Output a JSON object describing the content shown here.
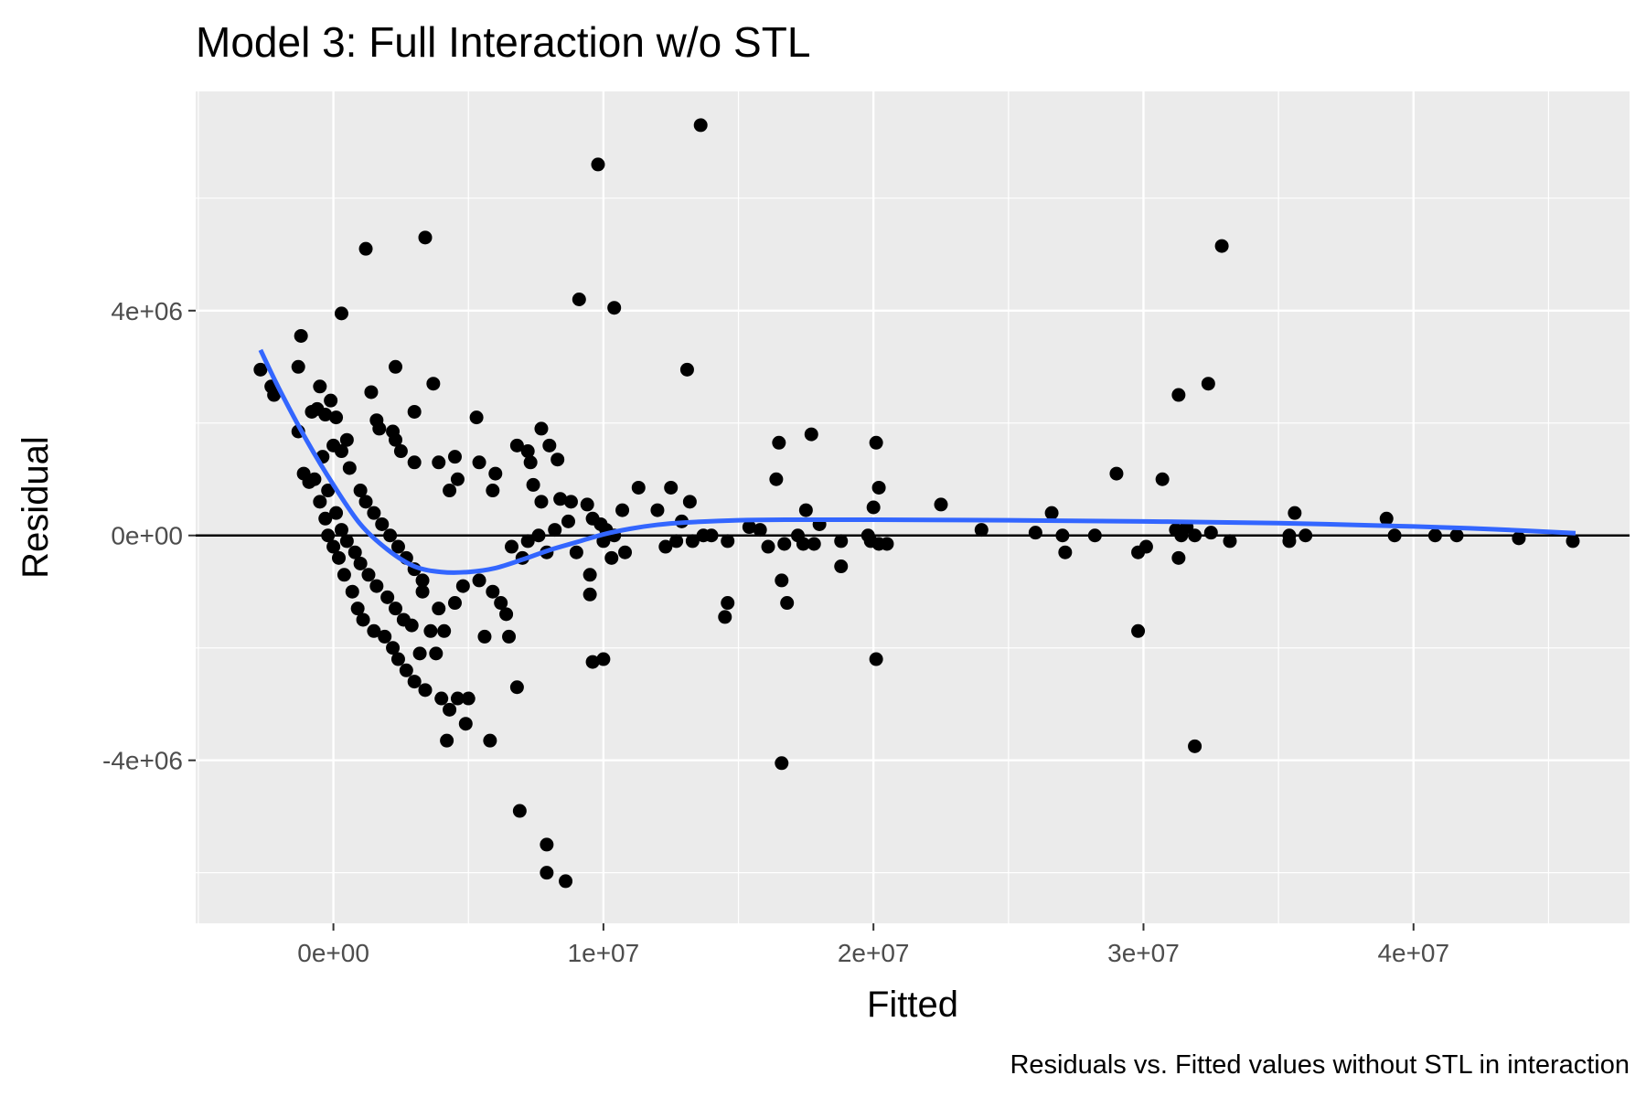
{
  "chart_data": {
    "type": "scatter",
    "title": "Model 3: Full Interaction w/o STL",
    "caption": "Residuals vs. Fitted values without STL in interaction",
    "xlabel": "Fitted",
    "ylabel": "Residual",
    "xlim": [
      -5100000,
      48000000
    ],
    "ylim": [
      -6900000,
      7900000
    ],
    "x_ticks": [
      0,
      10000000,
      20000000,
      30000000,
      40000000
    ],
    "x_tick_labels": [
      "0e+00",
      "1e+07",
      "2e+07",
      "3e+07",
      "4e+07"
    ],
    "y_ticks": [
      -4000000,
      0,
      4000000
    ],
    "y_tick_labels": [
      "-4e+06",
      "0e+00",
      "4e+06"
    ],
    "grid": true,
    "reference_line_y": 0,
    "series": [
      {
        "type": "points",
        "color": "#000000",
        "points": [
          [
            -2700000,
            2950000
          ],
          [
            -2200000,
            2500000
          ],
          [
            -2300000,
            2650000
          ],
          [
            -1300000,
            3000000
          ],
          [
            -1200000,
            3550000
          ],
          [
            -1300000,
            1850000
          ],
          [
            -1100000,
            1100000
          ],
          [
            -800000,
            2200000
          ],
          [
            -600000,
            2250000
          ],
          [
            -500000,
            2650000
          ],
          [
            -300000,
            2150000
          ],
          [
            -100000,
            2400000
          ],
          [
            100000,
            2100000
          ],
          [
            300000,
            3950000
          ],
          [
            -900000,
            950000
          ],
          [
            -700000,
            1000000
          ],
          [
            -400000,
            1400000
          ],
          [
            0,
            1600000
          ],
          [
            300000,
            1500000
          ],
          [
            500000,
            1700000
          ],
          [
            600000,
            1200000
          ],
          [
            -500000,
            600000
          ],
          [
            -300000,
            300000
          ],
          [
            -200000,
            0
          ],
          [
            0,
            -200000
          ],
          [
            200000,
            -400000
          ],
          [
            400000,
            -700000
          ],
          [
            700000,
            -1000000
          ],
          [
            900000,
            -1300000
          ],
          [
            1100000,
            -1500000
          ],
          [
            1500000,
            -1700000
          ],
          [
            1900000,
            -1800000
          ],
          [
            2200000,
            -2000000
          ],
          [
            2400000,
            -2200000
          ],
          [
            2700000,
            -2400000
          ],
          [
            3000000,
            -2600000
          ],
          [
            3400000,
            -2750000
          ],
          [
            3200000,
            -2100000
          ],
          [
            3800000,
            -2100000
          ],
          [
            3600000,
            -1700000
          ],
          [
            4100000,
            -1700000
          ],
          [
            4000000,
            -2900000
          ],
          [
            4300000,
            -3100000
          ],
          [
            4600000,
            -2900000
          ],
          [
            5000000,
            -2900000
          ],
          [
            4900000,
            -3350000
          ],
          [
            4200000,
            -3650000
          ],
          [
            5800000,
            -3650000
          ],
          [
            3300000,
            -1000000
          ],
          [
            3900000,
            -1300000
          ],
          [
            4500000,
            -1200000
          ],
          [
            4800000,
            -900000
          ],
          [
            5400000,
            -800000
          ],
          [
            5900000,
            -1000000
          ],
          [
            6200000,
            -1200000
          ],
          [
            6400000,
            -1400000
          ],
          [
            6500000,
            -1800000
          ],
          [
            5600000,
            -1800000
          ],
          [
            6800000,
            -2700000
          ],
          [
            -200000,
            800000
          ],
          [
            100000,
            400000
          ],
          [
            300000,
            100000
          ],
          [
            500000,
            -100000
          ],
          [
            800000,
            -300000
          ],
          [
            1000000,
            -500000
          ],
          [
            1300000,
            -700000
          ],
          [
            1600000,
            -900000
          ],
          [
            2000000,
            -1100000
          ],
          [
            2300000,
            -1300000
          ],
          [
            2600000,
            -1500000
          ],
          [
            2900000,
            -1600000
          ],
          [
            1000000,
            800000
          ],
          [
            1200000,
            600000
          ],
          [
            1500000,
            400000
          ],
          [
            1800000,
            200000
          ],
          [
            2100000,
            0
          ],
          [
            2400000,
            -200000
          ],
          [
            2700000,
            -400000
          ],
          [
            3000000,
            -600000
          ],
          [
            3300000,
            -800000
          ],
          [
            1400000,
            2550000
          ],
          [
            1600000,
            2050000
          ],
          [
            1700000,
            1900000
          ],
          [
            2200000,
            1850000
          ],
          [
            2300000,
            1700000
          ],
          [
            2500000,
            1500000
          ],
          [
            2300000,
            3000000
          ],
          [
            3000000,
            2200000
          ],
          [
            3700000,
            2700000
          ],
          [
            1200000,
            5100000
          ],
          [
            3400000,
            5300000
          ],
          [
            3000000,
            1300000
          ],
          [
            3900000,
            1300000
          ],
          [
            4500000,
            1400000
          ],
          [
            4300000,
            800000
          ],
          [
            4600000,
            1000000
          ],
          [
            5300000,
            2100000
          ],
          [
            5400000,
            1300000
          ],
          [
            6000000,
            1100000
          ],
          [
            5900000,
            800000
          ],
          [
            6800000,
            1600000
          ],
          [
            7200000,
            1500000
          ],
          [
            7300000,
            1300000
          ],
          [
            7700000,
            1900000
          ],
          [
            8000000,
            1600000
          ],
          [
            8300000,
            1350000
          ],
          [
            7400000,
            900000
          ],
          [
            7700000,
            600000
          ],
          [
            8400000,
            650000
          ],
          [
            8800000,
            600000
          ],
          [
            9400000,
            550000
          ],
          [
            9600000,
            300000
          ],
          [
            9900000,
            200000
          ],
          [
            10100000,
            100000
          ],
          [
            10400000,
            0
          ],
          [
            10700000,
            450000
          ],
          [
            11300000,
            850000
          ],
          [
            12000000,
            450000
          ],
          [
            12500000,
            850000
          ],
          [
            12900000,
            250000
          ],
          [
            13200000,
            600000
          ],
          [
            8700000,
            250000
          ],
          [
            9000000,
            -300000
          ],
          [
            9500000,
            -700000
          ],
          [
            9500000,
            -1050000
          ],
          [
            9600000,
            -2250000
          ],
          [
            10000000,
            -2200000
          ],
          [
            10000000,
            -100000
          ],
          [
            10300000,
            -400000
          ],
          [
            10800000,
            -300000
          ],
          [
            7900000,
            -300000
          ],
          [
            7000000,
            -400000
          ],
          [
            6600000,
            -200000
          ],
          [
            7200000,
            -100000
          ],
          [
            7600000,
            0
          ],
          [
            8200000,
            100000
          ],
          [
            6900000,
            -4900000
          ],
          [
            7900000,
            -5500000
          ],
          [
            7900000,
            -6000000
          ],
          [
            8600000,
            -6150000
          ],
          [
            9100000,
            4200000
          ],
          [
            10400000,
            4050000
          ],
          [
            9800000,
            6600000
          ],
          [
            13600000,
            7300000
          ],
          [
            13100000,
            2950000
          ],
          [
            12300000,
            -200000
          ],
          [
            12700000,
            -100000
          ],
          [
            13300000,
            -100000
          ],
          [
            13700000,
            0
          ],
          [
            14000000,
            0
          ],
          [
            14600000,
            -100000
          ],
          [
            14600000,
            -1200000
          ],
          [
            14500000,
            -1450000
          ],
          [
            15400000,
            150000
          ],
          [
            15800000,
            100000
          ],
          [
            16100000,
            -200000
          ],
          [
            16400000,
            1000000
          ],
          [
            16500000,
            1650000
          ],
          [
            16700000,
            -150000
          ],
          [
            16600000,
            -800000
          ],
          [
            16800000,
            -1200000
          ],
          [
            16600000,
            -4050000
          ],
          [
            17200000,
            0
          ],
          [
            17400000,
            -150000
          ],
          [
            17700000,
            1800000
          ],
          [
            17500000,
            450000
          ],
          [
            17800000,
            -150000
          ],
          [
            18000000,
            200000
          ],
          [
            18800000,
            -100000
          ],
          [
            18800000,
            -550000
          ],
          [
            19800000,
            0
          ],
          [
            19900000,
            -100000
          ],
          [
            20000000,
            500000
          ],
          [
            20100000,
            1650000
          ],
          [
            20200000,
            850000
          ],
          [
            20100000,
            -2200000
          ],
          [
            20200000,
            -150000
          ],
          [
            20500000,
            -150000
          ],
          [
            22500000,
            550000
          ],
          [
            24000000,
            100000
          ],
          [
            26000000,
            50000
          ],
          [
            26600000,
            400000
          ],
          [
            27000000,
            0
          ],
          [
            27100000,
            -300000
          ],
          [
            28200000,
            0
          ],
          [
            29000000,
            1100000
          ],
          [
            29800000,
            -300000
          ],
          [
            29800000,
            -1700000
          ],
          [
            30100000,
            -200000
          ],
          [
            30700000,
            1000000
          ],
          [
            31200000,
            100000
          ],
          [
            31300000,
            2500000
          ],
          [
            31300000,
            -400000
          ],
          [
            31400000,
            0
          ],
          [
            31600000,
            150000
          ],
          [
            31900000,
            0
          ],
          [
            31900000,
            -3750000
          ],
          [
            32400000,
            2700000
          ],
          [
            32500000,
            50000
          ],
          [
            32900000,
            5150000
          ],
          [
            33200000,
            -100000
          ],
          [
            35400000,
            0
          ],
          [
            35400000,
            -100000
          ],
          [
            35600000,
            400000
          ],
          [
            36000000,
            0
          ],
          [
            39000000,
            300000
          ],
          [
            39300000,
            0
          ],
          [
            40800000,
            0
          ],
          [
            41600000,
            0
          ],
          [
            43900000,
            -50000
          ],
          [
            45900000,
            -100000
          ]
        ]
      },
      {
        "type": "smooth",
        "color": "#3366ff",
        "points": [
          [
            -2700000,
            3300000
          ],
          [
            -2000000,
            2600000
          ],
          [
            -1000000,
            1700000
          ],
          [
            0,
            900000
          ],
          [
            1000000,
            200000
          ],
          [
            2000000,
            -250000
          ],
          [
            3000000,
            -550000
          ],
          [
            4000000,
            -650000
          ],
          [
            5000000,
            -650000
          ],
          [
            6000000,
            -580000
          ],
          [
            7000000,
            -430000
          ],
          [
            8000000,
            -260000
          ],
          [
            9000000,
            -120000
          ],
          [
            10000000,
            20000
          ],
          [
            11000000,
            120000
          ],
          [
            12000000,
            190000
          ],
          [
            13000000,
            230000
          ],
          [
            15000000,
            270000
          ],
          [
            17000000,
            280000
          ],
          [
            20000000,
            280000
          ],
          [
            25000000,
            270000
          ],
          [
            30000000,
            250000
          ],
          [
            35000000,
            220000
          ],
          [
            40000000,
            160000
          ],
          [
            43000000,
            110000
          ],
          [
            46000000,
            40000
          ]
        ]
      }
    ]
  }
}
